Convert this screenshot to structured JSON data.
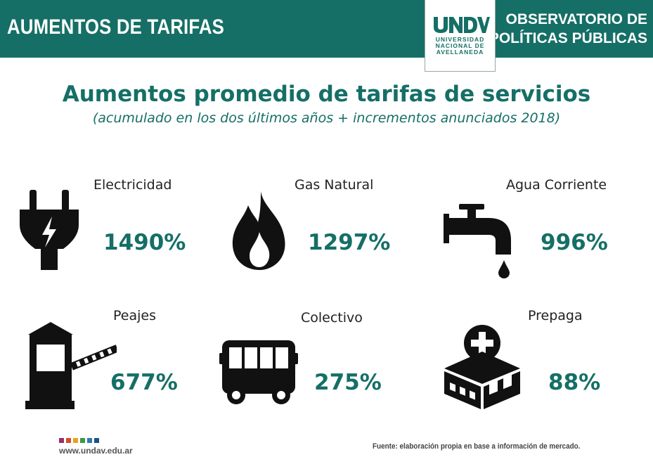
{
  "header": {
    "title": "AUMENTOS DE TARIFAS",
    "right_line1": "OBSERVATORIO DE",
    "right_line2": "POLÍTICAS PÚBLICAS",
    "background_color": "#156f66"
  },
  "logo": {
    "mark_text": "UNDAV",
    "line1": "UNIVERSIDAD",
    "line2": "NACIONAL DE",
    "line3": "AVELLANEDA"
  },
  "main": {
    "title": "Aumentos promedio de tarifas de servicios",
    "subtitle": "(acumulado en los dos últimos años + incrementos anunciados 2018)",
    "accent_color": "#156f66"
  },
  "services": [
    {
      "label": "Electricidad",
      "value": "1490%",
      "icon": "plug-icon"
    },
    {
      "label": "Gas Natural",
      "value": "1297%",
      "icon": "flame-icon"
    },
    {
      "label": "Agua Corriente",
      "value": "996%",
      "icon": "faucet-icon"
    },
    {
      "label": "Peajes",
      "value": "677%",
      "icon": "toll-booth-icon"
    },
    {
      "label": "Colectivo",
      "value": "275%",
      "icon": "bus-icon"
    },
    {
      "label": "Prepaga",
      "value": "88%",
      "icon": "hospital-icon"
    }
  ],
  "footer": {
    "website": "www.undav.edu.ar",
    "source": "Fuente: elaboración propia en base a información de mercado.",
    "dot_colors": [
      "#9b2c6a",
      "#d64b2a",
      "#e8a21c",
      "#3a9a46",
      "#2f78b5",
      "#1d4f8a"
    ]
  }
}
